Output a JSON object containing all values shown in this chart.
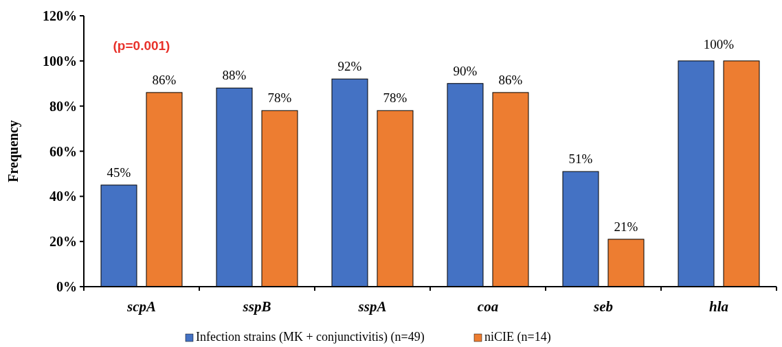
{
  "chart_data": {
    "type": "bar",
    "ylabel": "Frequency",
    "categories": [
      "scpA",
      "sspB",
      "sspA",
      "coa",
      "seb",
      "hla"
    ],
    "series": [
      {
        "name": "Infection strains (MK + conjunctivitis) (n=49)",
        "color": "#4472c4",
        "values": [
          45,
          88,
          92,
          90,
          51,
          100
        ],
        "value_labels": [
          "45%",
          "88%",
          "92%",
          "90%",
          "51%",
          null
        ]
      },
      {
        "name": "niCIE (n=14)",
        "color": "#ed7d31",
        "values": [
          86,
          78,
          78,
          86,
          21,
          100
        ],
        "value_labels": [
          "86%",
          "78%",
          "78%",
          "86%",
          "21%",
          null
        ]
      }
    ],
    "ylim": [
      0,
      120
    ],
    "yticks": [
      {
        "value": 0,
        "label": "0%"
      },
      {
        "value": 20,
        "label": "20%"
      },
      {
        "value": 40,
        "label": "40%"
      },
      {
        "value": 60,
        "label": "60%"
      },
      {
        "value": 80,
        "label": "80%"
      },
      {
        "value": 100,
        "label": "100%"
      },
      {
        "value": 120,
        "label": "120%"
      }
    ],
    "grid": false,
    "legend": "bottom",
    "annotations": [
      "(p=0.001)",
      "100%"
    ]
  }
}
